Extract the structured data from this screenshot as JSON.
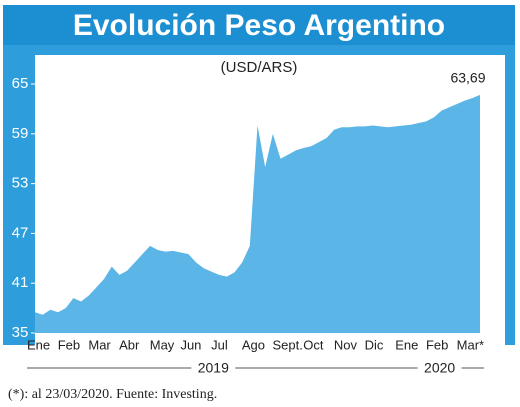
{
  "chart_data": {
    "type": "area",
    "title": "Evolución Peso Argentino",
    "subtitle": "(USD/ARS)",
    "footnote": "(*): al 23/03/2020. Fuente: Investing.",
    "categories": [
      "Ene",
      null,
      null,
      null,
      "Feb",
      null,
      null,
      null,
      "Mar",
      null,
      null,
      null,
      "Abr",
      null,
      null,
      null,
      "May",
      null,
      null,
      null,
      "Jun",
      null,
      null,
      null,
      "Jul",
      null,
      null,
      null,
      "Ago",
      null,
      null,
      null,
      "Sept.",
      null,
      null,
      null,
      "Oct",
      null,
      null,
      null,
      "Nov",
      null,
      null,
      null,
      "Dic",
      null,
      null,
      null,
      "Ene",
      null,
      null,
      null,
      "Feb",
      null,
      null,
      null,
      "Mar*",
      null,
      null
    ],
    "years": [
      "2019",
      "2020"
    ],
    "series": [
      {
        "name": "USD/ARS",
        "color": "#5bb5e6",
        "values": [
          37.5,
          37.2,
          37.8,
          37.5,
          38.0,
          39.2,
          38.8,
          39.5,
          40.5,
          41.5,
          43.0,
          42.0,
          42.5,
          43.5,
          44.5,
          45.5,
          45.0,
          44.8,
          44.9,
          44.7,
          44.5,
          43.5,
          42.8,
          42.4,
          42.0,
          41.8,
          42.3,
          43.5,
          45.5,
          60.0,
          55.0,
          59.0,
          56.0,
          56.5,
          57.0,
          57.3,
          57.5,
          58.0,
          58.5,
          59.5,
          59.8,
          59.8,
          59.9,
          59.9,
          60.0,
          59.9,
          59.8,
          59.9,
          60.0,
          60.1,
          60.3,
          60.5,
          61.0,
          61.8,
          62.2,
          62.6,
          63.0,
          63.3,
          63.69
        ],
        "value_labels": [
          null,
          null,
          null,
          null,
          null,
          null,
          null,
          null,
          null,
          null,
          null,
          null,
          null,
          null,
          null,
          null,
          null,
          null,
          null,
          null,
          null,
          null,
          null,
          null,
          null,
          null,
          null,
          null,
          null,
          null,
          null,
          null,
          null,
          null,
          null,
          null,
          null,
          null,
          null,
          null,
          null,
          null,
          null,
          null,
          null,
          null,
          null,
          null,
          null,
          null,
          null,
          null,
          null,
          null,
          null,
          null,
          null,
          null,
          "63,69"
        ]
      }
    ],
    "ylim": [
      35,
      68.5
    ],
    "yticks": [
      35,
      41,
      47,
      53,
      59,
      65
    ],
    "grid": false
  }
}
